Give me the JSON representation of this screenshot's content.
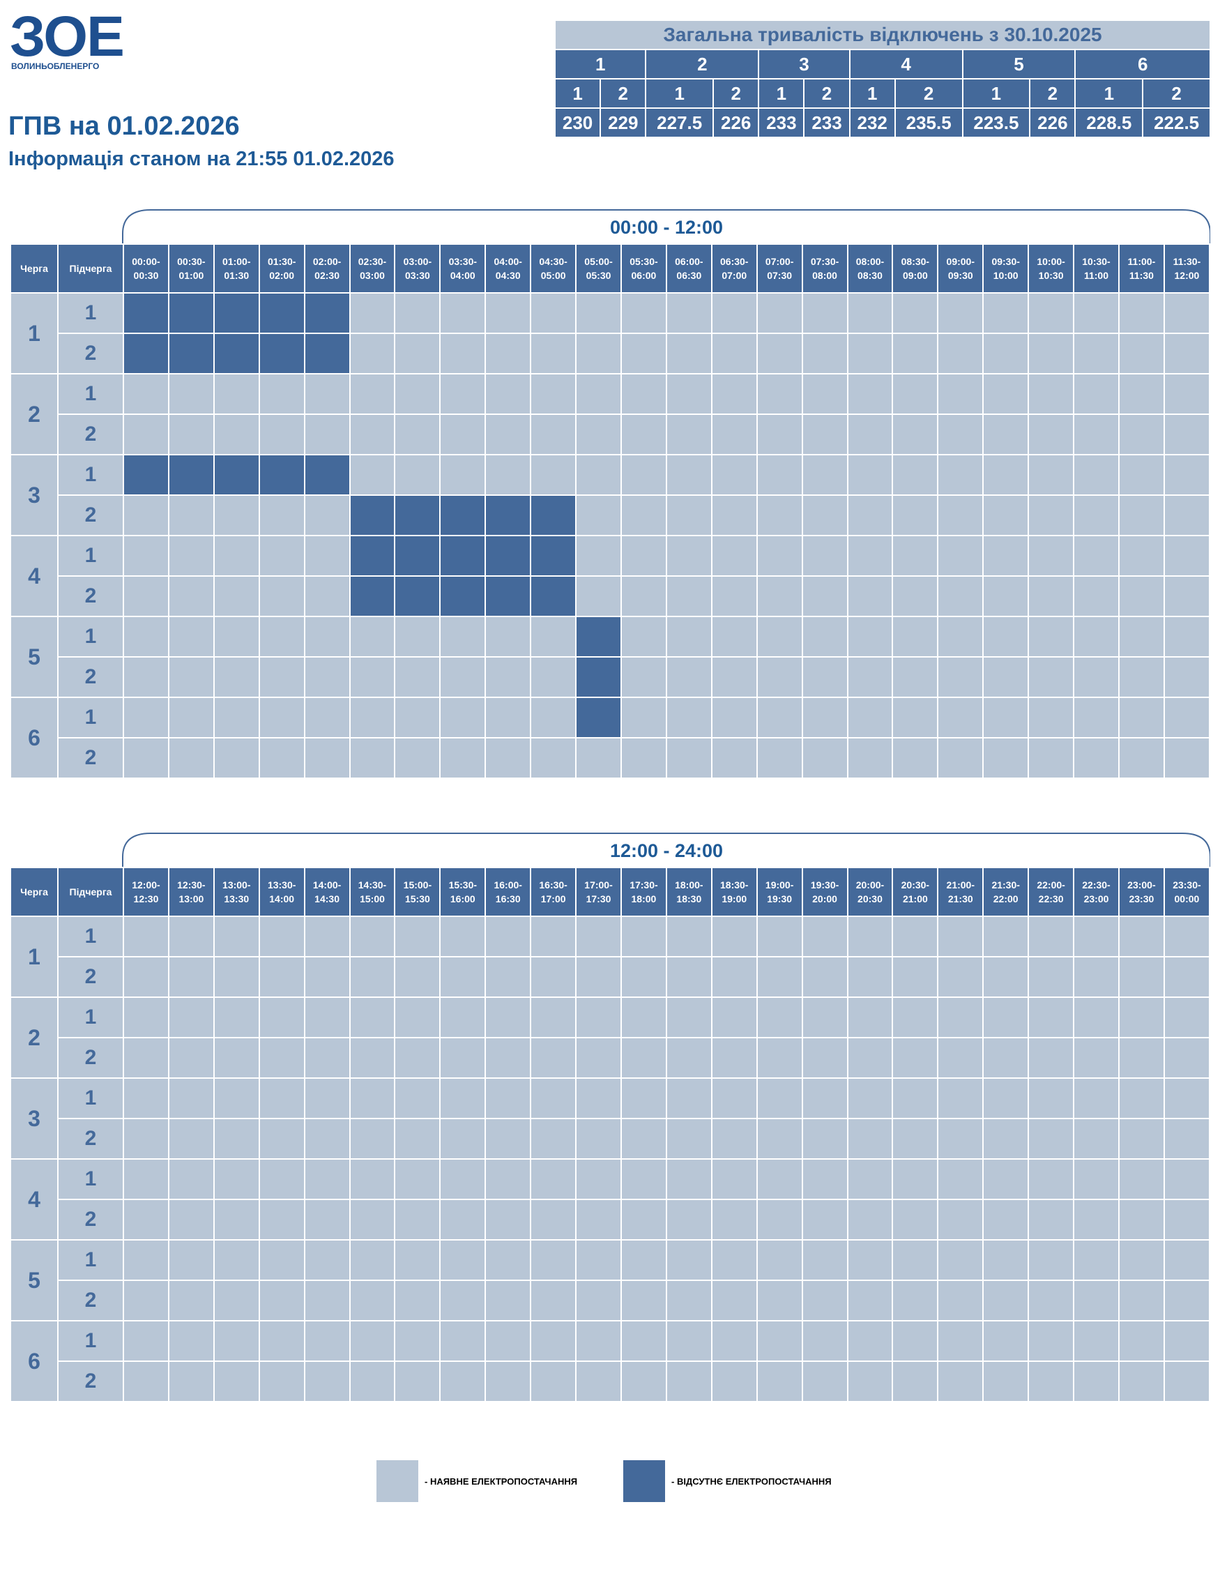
{
  "logo": {
    "mark": "ЗОЕ",
    "name": "ВОЛИНЬОБЛЕНЕРГО"
  },
  "header": {
    "title": "ГПВ на 01.02.2026",
    "subtitle": "Інформація станом на 21:55 01.02.2026"
  },
  "summary": {
    "title": "Загальна тривалість відключень з 30.10.2025",
    "groups": [
      {
        "label": "1",
        "subgroups": [
          "1",
          "2"
        ],
        "values": [
          230,
          229
        ]
      },
      {
        "label": "2",
        "subgroups": [
          "1",
          "2"
        ],
        "values": [
          227.5,
          226
        ]
      },
      {
        "label": "3",
        "subgroups": [
          "1",
          "2"
        ],
        "values": [
          233,
          233
        ]
      },
      {
        "label": "4",
        "subgroups": [
          "1",
          "2"
        ],
        "values": [
          232,
          235.5
        ]
      },
      {
        "label": "5",
        "subgroups": [
          "1",
          "2"
        ],
        "values": [
          223.5,
          226
        ]
      },
      {
        "label": "6",
        "subgroups": [
          "1",
          "2"
        ],
        "values": [
          228.5,
          222.5
        ]
      }
    ]
  },
  "schedule": {
    "sections": [
      {
        "range": "00:00 - 12:00",
        "queue_header": "Черга",
        "subqueue_header": "Підчерга",
        "slots": [
          "00:00-00:30",
          "00:30-01:00",
          "01:00-01:30",
          "01:30-02:00",
          "02:00-02:30",
          "02:30-03:00",
          "03:00-03:30",
          "03:30-04:00",
          "04:00-04:30",
          "04:30-05:00",
          "05:00-05:30",
          "05:30-06:00",
          "06:00-06:30",
          "06:30-07:00",
          "07:00-07:30",
          "07:30-08:00",
          "08:00-08:30",
          "08:30-09:00",
          "09:00-09:30",
          "09:30-10:00",
          "10:00-10:30",
          "10:30-11:00",
          "11:00-11:30",
          "11:30-12:00"
        ],
        "queues": [
          {
            "label": "1",
            "subqueues": [
              {
                "label": "1",
                "off": [
                  1,
                  1,
                  1,
                  1,
                  1,
                  0,
                  0,
                  0,
                  0,
                  0,
                  0,
                  0,
                  0,
                  0,
                  0,
                  0,
                  0,
                  0,
                  0,
                  0,
                  0,
                  0,
                  0,
                  0
                ]
              },
              {
                "label": "2",
                "off": [
                  1,
                  1,
                  1,
                  1,
                  1,
                  0,
                  0,
                  0,
                  0,
                  0,
                  0,
                  0,
                  0,
                  0,
                  0,
                  0,
                  0,
                  0,
                  0,
                  0,
                  0,
                  0,
                  0,
                  0
                ]
              }
            ]
          },
          {
            "label": "2",
            "subqueues": [
              {
                "label": "1",
                "off": [
                  0,
                  0,
                  0,
                  0,
                  0,
                  0,
                  0,
                  0,
                  0,
                  0,
                  0,
                  0,
                  0,
                  0,
                  0,
                  0,
                  0,
                  0,
                  0,
                  0,
                  0,
                  0,
                  0,
                  0
                ]
              },
              {
                "label": "2",
                "off": [
                  0,
                  0,
                  0,
                  0,
                  0,
                  0,
                  0,
                  0,
                  0,
                  0,
                  0,
                  0,
                  0,
                  0,
                  0,
                  0,
                  0,
                  0,
                  0,
                  0,
                  0,
                  0,
                  0,
                  0
                ]
              }
            ]
          },
          {
            "label": "3",
            "subqueues": [
              {
                "label": "1",
                "off": [
                  1,
                  1,
                  1,
                  1,
                  1,
                  0,
                  0,
                  0,
                  0,
                  0,
                  0,
                  0,
                  0,
                  0,
                  0,
                  0,
                  0,
                  0,
                  0,
                  0,
                  0,
                  0,
                  0,
                  0
                ]
              },
              {
                "label": "2",
                "off": [
                  0,
                  0,
                  0,
                  0,
                  0,
                  1,
                  1,
                  1,
                  1,
                  1,
                  0,
                  0,
                  0,
                  0,
                  0,
                  0,
                  0,
                  0,
                  0,
                  0,
                  0,
                  0,
                  0,
                  0
                ]
              }
            ]
          },
          {
            "label": "4",
            "subqueues": [
              {
                "label": "1",
                "off": [
                  0,
                  0,
                  0,
                  0,
                  0,
                  1,
                  1,
                  1,
                  1,
                  1,
                  0,
                  0,
                  0,
                  0,
                  0,
                  0,
                  0,
                  0,
                  0,
                  0,
                  0,
                  0,
                  0,
                  0
                ]
              },
              {
                "label": "2",
                "off": [
                  0,
                  0,
                  0,
                  0,
                  0,
                  1,
                  1,
                  1,
                  1,
                  1,
                  0,
                  0,
                  0,
                  0,
                  0,
                  0,
                  0,
                  0,
                  0,
                  0,
                  0,
                  0,
                  0,
                  0
                ]
              }
            ]
          },
          {
            "label": "5",
            "subqueues": [
              {
                "label": "1",
                "off": [
                  0,
                  0,
                  0,
                  0,
                  0,
                  0,
                  0,
                  0,
                  0,
                  0,
                  1,
                  0,
                  0,
                  0,
                  0,
                  0,
                  0,
                  0,
                  0,
                  0,
                  0,
                  0,
                  0,
                  0
                ]
              },
              {
                "label": "2",
                "off": [
                  0,
                  0,
                  0,
                  0,
                  0,
                  0,
                  0,
                  0,
                  0,
                  0,
                  1,
                  0,
                  0,
                  0,
                  0,
                  0,
                  0,
                  0,
                  0,
                  0,
                  0,
                  0,
                  0,
                  0
                ]
              }
            ]
          },
          {
            "label": "6",
            "subqueues": [
              {
                "label": "1",
                "off": [
                  0,
                  0,
                  0,
                  0,
                  0,
                  0,
                  0,
                  0,
                  0,
                  0,
                  1,
                  0,
                  0,
                  0,
                  0,
                  0,
                  0,
                  0,
                  0,
                  0,
                  0,
                  0,
                  0,
                  0
                ]
              },
              {
                "label": "2",
                "off": [
                  0,
                  0,
                  0,
                  0,
                  0,
                  0,
                  0,
                  0,
                  0,
                  0,
                  0,
                  0,
                  0,
                  0,
                  0,
                  0,
                  0,
                  0,
                  0,
                  0,
                  0,
                  0,
                  0,
                  0
                ]
              }
            ]
          }
        ]
      },
      {
        "range": "12:00 - 24:00",
        "queue_header": "Черга",
        "subqueue_header": "Підчерга",
        "slots": [
          "12:00-12:30",
          "12:30-13:00",
          "13:00-13:30",
          "13:30-14:00",
          "14:00-14:30",
          "14:30-15:00",
          "15:00-15:30",
          "15:30-16:00",
          "16:00-16:30",
          "16:30-17:00",
          "17:00-17:30",
          "17:30-18:00",
          "18:00-18:30",
          "18:30-19:00",
          "19:00-19:30",
          "19:30-20:00",
          "20:00-20:30",
          "20:30-21:00",
          "21:00-21:30",
          "21:30-22:00",
          "22:00-22:30",
          "22:30-23:00",
          "23:00-23:30",
          "23:30-00:00"
        ],
        "queues": [
          {
            "label": "1",
            "subqueues": [
              {
                "label": "1",
                "off": [
                  0,
                  0,
                  0,
                  0,
                  0,
                  0,
                  0,
                  0,
                  0,
                  0,
                  0,
                  0,
                  0,
                  0,
                  0,
                  0,
                  0,
                  0,
                  0,
                  0,
                  0,
                  0,
                  0,
                  0
                ]
              },
              {
                "label": "2",
                "off": [
                  0,
                  0,
                  0,
                  0,
                  0,
                  0,
                  0,
                  0,
                  0,
                  0,
                  0,
                  0,
                  0,
                  0,
                  0,
                  0,
                  0,
                  0,
                  0,
                  0,
                  0,
                  0,
                  0,
                  0
                ]
              }
            ]
          },
          {
            "label": "2",
            "subqueues": [
              {
                "label": "1",
                "off": [
                  0,
                  0,
                  0,
                  0,
                  0,
                  0,
                  0,
                  0,
                  0,
                  0,
                  0,
                  0,
                  0,
                  0,
                  0,
                  0,
                  0,
                  0,
                  0,
                  0,
                  0,
                  0,
                  0,
                  0
                ]
              },
              {
                "label": "2",
                "off": [
                  0,
                  0,
                  0,
                  0,
                  0,
                  0,
                  0,
                  0,
                  0,
                  0,
                  0,
                  0,
                  0,
                  0,
                  0,
                  0,
                  0,
                  0,
                  0,
                  0,
                  0,
                  0,
                  0,
                  0
                ]
              }
            ]
          },
          {
            "label": "3",
            "subqueues": [
              {
                "label": "1",
                "off": [
                  0,
                  0,
                  0,
                  0,
                  0,
                  0,
                  0,
                  0,
                  0,
                  0,
                  0,
                  0,
                  0,
                  0,
                  0,
                  0,
                  0,
                  0,
                  0,
                  0,
                  0,
                  0,
                  0,
                  0
                ]
              },
              {
                "label": "2",
                "off": [
                  0,
                  0,
                  0,
                  0,
                  0,
                  0,
                  0,
                  0,
                  0,
                  0,
                  0,
                  0,
                  0,
                  0,
                  0,
                  0,
                  0,
                  0,
                  0,
                  0,
                  0,
                  0,
                  0,
                  0
                ]
              }
            ]
          },
          {
            "label": "4",
            "subqueues": [
              {
                "label": "1",
                "off": [
                  0,
                  0,
                  0,
                  0,
                  0,
                  0,
                  0,
                  0,
                  0,
                  0,
                  0,
                  0,
                  0,
                  0,
                  0,
                  0,
                  0,
                  0,
                  0,
                  0,
                  0,
                  0,
                  0,
                  0
                ]
              },
              {
                "label": "2",
                "off": [
                  0,
                  0,
                  0,
                  0,
                  0,
                  0,
                  0,
                  0,
                  0,
                  0,
                  0,
                  0,
                  0,
                  0,
                  0,
                  0,
                  0,
                  0,
                  0,
                  0,
                  0,
                  0,
                  0,
                  0
                ]
              }
            ]
          },
          {
            "label": "5",
            "subqueues": [
              {
                "label": "1",
                "off": [
                  0,
                  0,
                  0,
                  0,
                  0,
                  0,
                  0,
                  0,
                  0,
                  0,
                  0,
                  0,
                  0,
                  0,
                  0,
                  0,
                  0,
                  0,
                  0,
                  0,
                  0,
                  0,
                  0,
                  0
                ]
              },
              {
                "label": "2",
                "off": [
                  0,
                  0,
                  0,
                  0,
                  0,
                  0,
                  0,
                  0,
                  0,
                  0,
                  0,
                  0,
                  0,
                  0,
                  0,
                  0,
                  0,
                  0,
                  0,
                  0,
                  0,
                  0,
                  0,
                  0
                ]
              }
            ]
          },
          {
            "label": "6",
            "subqueues": [
              {
                "label": "1",
                "off": [
                  0,
                  0,
                  0,
                  0,
                  0,
                  0,
                  0,
                  0,
                  0,
                  0,
                  0,
                  0,
                  0,
                  0,
                  0,
                  0,
                  0,
                  0,
                  0,
                  0,
                  0,
                  0,
                  0,
                  0
                ]
              },
              {
                "label": "2",
                "off": [
                  0,
                  0,
                  0,
                  0,
                  0,
                  0,
                  0,
                  0,
                  0,
                  0,
                  0,
                  0,
                  0,
                  0,
                  0,
                  0,
                  0,
                  0,
                  0,
                  0,
                  0,
                  0,
                  0,
                  0
                ]
              }
            ]
          }
        ]
      }
    ]
  },
  "legend": [
    {
      "label": "- НАЯВНЕ ЕЛЕКТРОПОСТАЧАННЯ",
      "color": "#b8c6d6"
    },
    {
      "label": "- ВІДСУТНЄ ЕЛЕКТРОПОСТАЧАННЯ",
      "color": "#44699a"
    }
  ]
}
